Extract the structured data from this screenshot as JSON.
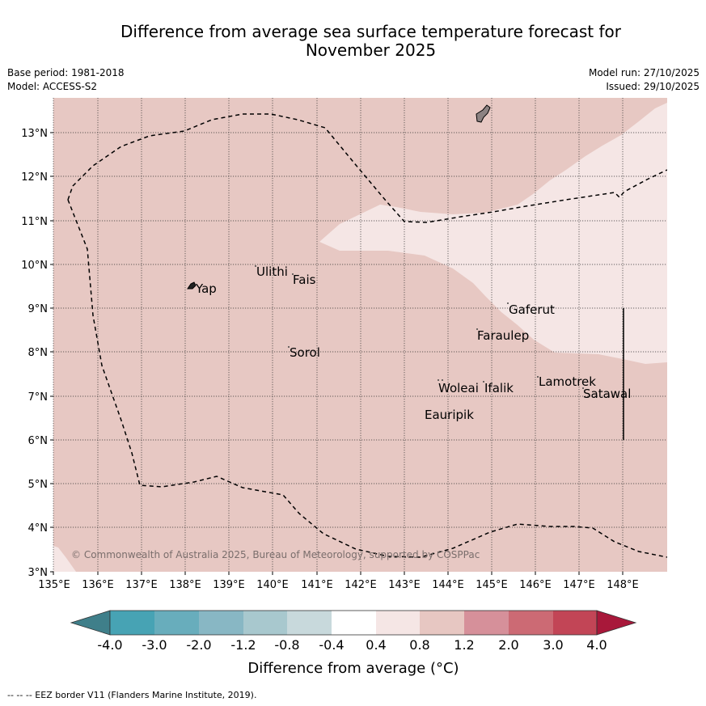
{
  "title_line1": "Difference from average sea surface temperature forecast for",
  "title_line2": "November 2025",
  "base_period": "Base period: 1981-2018",
  "model": "Model: ACCESS-S2",
  "model_run": "Model run: 27/10/2025",
  "issued": "Issued: 29/10/2025",
  "copyright": "© Commonwealth of Australia 2025, Bureau of Meteorology, supported by COSPPac",
  "lon_ticks": [
    "135°E",
    "136°E",
    "137°E",
    "138°E",
    "139°E",
    "140°E",
    "141°E",
    "142°E",
    "143°E",
    "144°E",
    "145°E",
    "146°E",
    "147°E",
    "148°E"
  ],
  "lat_ticks": [
    "3°N",
    "4°N",
    "5°N",
    "6°N",
    "7°N",
    "8°N",
    "9°N",
    "10°N",
    "11°N",
    "12°N",
    "13°N"
  ],
  "islands": [
    {
      "name": "Yap"
    },
    {
      "name": "Ulithi"
    },
    {
      "name": "Fais"
    },
    {
      "name": "Sorol"
    },
    {
      "name": "Gaferut"
    },
    {
      "name": "Faraulep"
    },
    {
      "name": "Woleai"
    },
    {
      "name": "Ifalik"
    },
    {
      "name": "Eauripik"
    },
    {
      "name": "Lamotrek"
    },
    {
      "name": "Satawal"
    }
  ],
  "colorbar": {
    "label": "Difference from average (°C)",
    "ticks": [
      "-4.0",
      "-3.0",
      "-2.0",
      "-1.2",
      "-0.8",
      "-0.4",
      "0.4",
      "0.8",
      "1.2",
      "2.0",
      "3.0",
      "4.0"
    ],
    "colors": [
      "#3f7f8a",
      "#47a3b4",
      "#68adbc",
      "#88b7c4",
      "#a8c8ce",
      "#c8d9dc",
      "#ffffff",
      "#f5e6e5",
      "#e7c7c2",
      "#d6909a",
      "#cc6a74",
      "#c24556",
      "#a8183a"
    ],
    "fill_colors": {
      "anomaly_0_4_to_0_8": "#f5e6e5",
      "anomaly_0_8_to_1_2": "#e7c8c3"
    }
  },
  "footnote": "--  --  -- EEZ border V11 (Flanders Marine Institute, 2019)."
}
